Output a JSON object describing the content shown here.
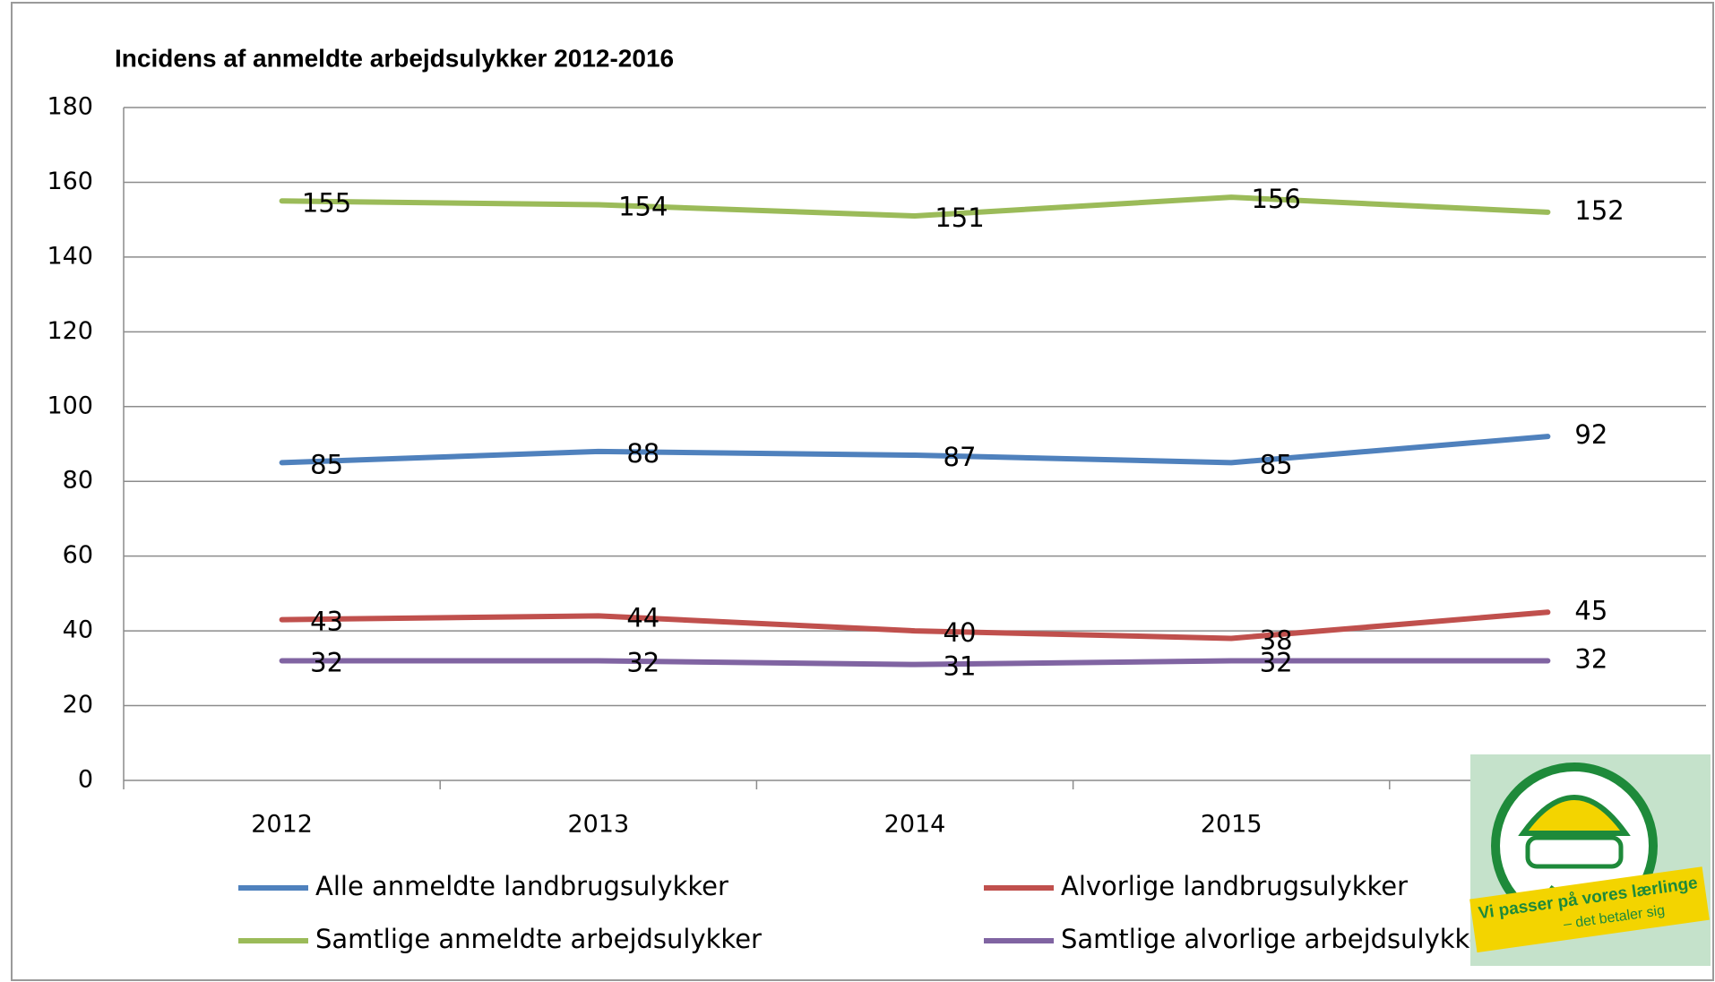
{
  "chart_data": {
    "type": "line",
    "title": "Incidens af anmeldte arbejdsulykker 2012-2016",
    "categories": [
      "2012",
      "2013",
      "2014",
      "2015",
      null
    ],
    "series": [
      {
        "name": "Alle anmeldte landbrugsulykker",
        "color": "#4f81bd",
        "values": [
          85,
          88,
          87,
          85,
          92
        ]
      },
      {
        "name": "Alvorlige landbrugsulykker",
        "color": "#c0504d",
        "values": [
          43,
          44,
          40,
          38,
          45
        ]
      },
      {
        "name": "Samtlige anmeldte arbejdsulykker",
        "color": "#9bbb59",
        "values": [
          155,
          154,
          151,
          156,
          152
        ]
      },
      {
        "name": "Samtlige alvorlige arbejdsulykker",
        "color": "#8064a2",
        "values": [
          32,
          32,
          31,
          32,
          32
        ]
      }
    ],
    "ylim": [
      0,
      180
    ],
    "yticks": [
      0,
      20,
      40,
      60,
      80,
      100,
      120,
      140,
      160,
      180
    ],
    "grid": true,
    "legend": "bottom"
  },
  "logo": {
    "line1": "Vi passer på vores lærlinge",
    "line2": "– det betaler sig"
  }
}
